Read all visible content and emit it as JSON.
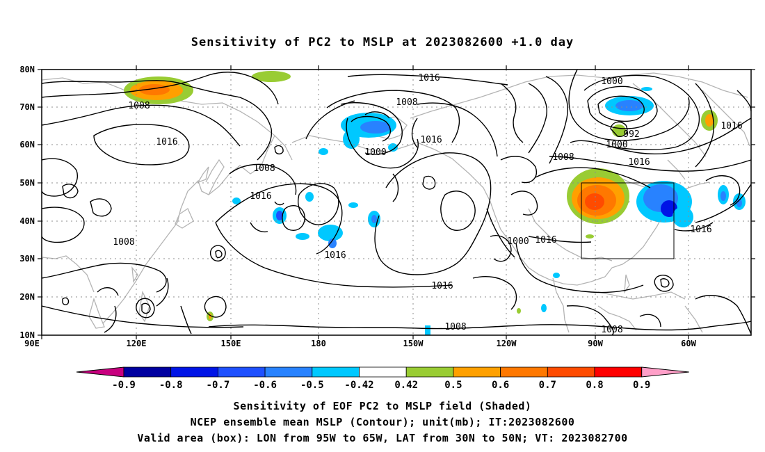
{
  "title": "Sensitivity of PC2 to MSLP at 2023082600 +1.0 day",
  "lat_labels": [
    "80N",
    "70N",
    "60N",
    "50N",
    "40N",
    "30N",
    "20N",
    "10N"
  ],
  "lon_labels": [
    "90E",
    "120E",
    "150E",
    "180",
    "150W",
    "120W",
    "90W",
    "60W"
  ],
  "contour_labels": [
    {
      "text": "1016"
    },
    {
      "text": "1008"
    },
    {
      "text": "1016"
    },
    {
      "text": "1008"
    },
    {
      "text": "1016"
    },
    {
      "text": "1008"
    },
    {
      "text": "1016"
    },
    {
      "text": "1008"
    },
    {
      "text": "1016"
    },
    {
      "text": "1000"
    },
    {
      "text": "1016"
    },
    {
      "text": "1000"
    },
    {
      "text": "992"
    },
    {
      "text": "1000"
    },
    {
      "text": "1016"
    },
    {
      "text": "1008"
    },
    {
      "text": "1016"
    },
    {
      "text": "1016"
    },
    {
      "text": "1000"
    },
    {
      "text": "1016"
    },
    {
      "text": "1016"
    },
    {
      "text": "1008"
    },
    {
      "text": "1008"
    }
  ],
  "colorbar": {
    "labels": [
      "-0.9",
      "-0.8",
      "-0.7",
      "-0.6",
      "-0.5",
      "-0.42",
      "0.42",
      "0.5",
      "0.6",
      "0.7",
      "0.8",
      "0.9"
    ],
    "colors": [
      "#c8007f",
      "#0000a0",
      "#0014e6",
      "#1e50ff",
      "#2882ff",
      "#00c8ff",
      "#ffffff",
      "#99cc33",
      "#ffa000",
      "#ff7800",
      "#ff4b00",
      "#ff0000",
      "#ff9fc8"
    ]
  },
  "valid_box": {
    "lon_west": -95,
    "lon_east": -65,
    "lat_south": 30,
    "lat_north": 50
  },
  "footer": {
    "line1": "Sensitivity of EOF PC2 to MSLP field (Shaded)",
    "line2": "NCEP ensemble mean MSLP (Contour); unit(mb); IT:2023082600",
    "line3": "Valid area (box): LON from 95W to 65W, LAT from 30N to 50N; VT: 2023082700"
  }
}
